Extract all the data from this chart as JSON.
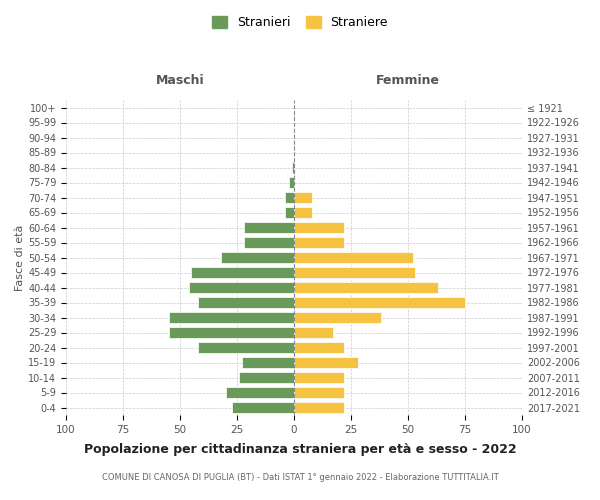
{
  "age_groups": [
    "100+",
    "95-99",
    "90-94",
    "85-89",
    "80-84",
    "75-79",
    "70-74",
    "65-69",
    "60-64",
    "55-59",
    "50-54",
    "45-49",
    "40-44",
    "35-39",
    "30-34",
    "25-29",
    "20-24",
    "15-19",
    "10-14",
    "5-9",
    "0-4"
  ],
  "birth_years": [
    "≤ 1921",
    "1922-1926",
    "1927-1931",
    "1932-1936",
    "1937-1941",
    "1942-1946",
    "1947-1951",
    "1952-1956",
    "1957-1961",
    "1962-1966",
    "1967-1971",
    "1972-1976",
    "1977-1981",
    "1982-1986",
    "1987-1991",
    "1992-1996",
    "1997-2001",
    "2002-2006",
    "2007-2011",
    "2012-2016",
    "2017-2021"
  ],
  "maschi": [
    0,
    0,
    0,
    0,
    1,
    2,
    4,
    4,
    22,
    22,
    32,
    45,
    46,
    42,
    55,
    55,
    42,
    23,
    24,
    30,
    27
  ],
  "femmine": [
    0,
    0,
    0,
    0,
    0,
    0,
    8,
    8,
    22,
    22,
    52,
    53,
    63,
    75,
    38,
    17,
    22,
    28,
    22,
    22,
    22
  ],
  "color_maschi": "#6a9a5a",
  "color_femmine": "#f5c242",
  "background_color": "#ffffff",
  "grid_color": "#cccccc",
  "title": "Popolazione per cittadinanza straniera per età e sesso - 2022",
  "subtitle": "COMUNE DI CANOSA DI PUGLIA (BT) - Dati ISTAT 1° gennaio 2022 - Elaborazione TUTTITALIA.IT",
  "ylabel_left": "Fasce di età",
  "header_left": "Maschi",
  "header_right": "Femmine",
  "legend_maschi": "Stranieri",
  "legend_femmine": "Straniere",
  "xlim": 100
}
